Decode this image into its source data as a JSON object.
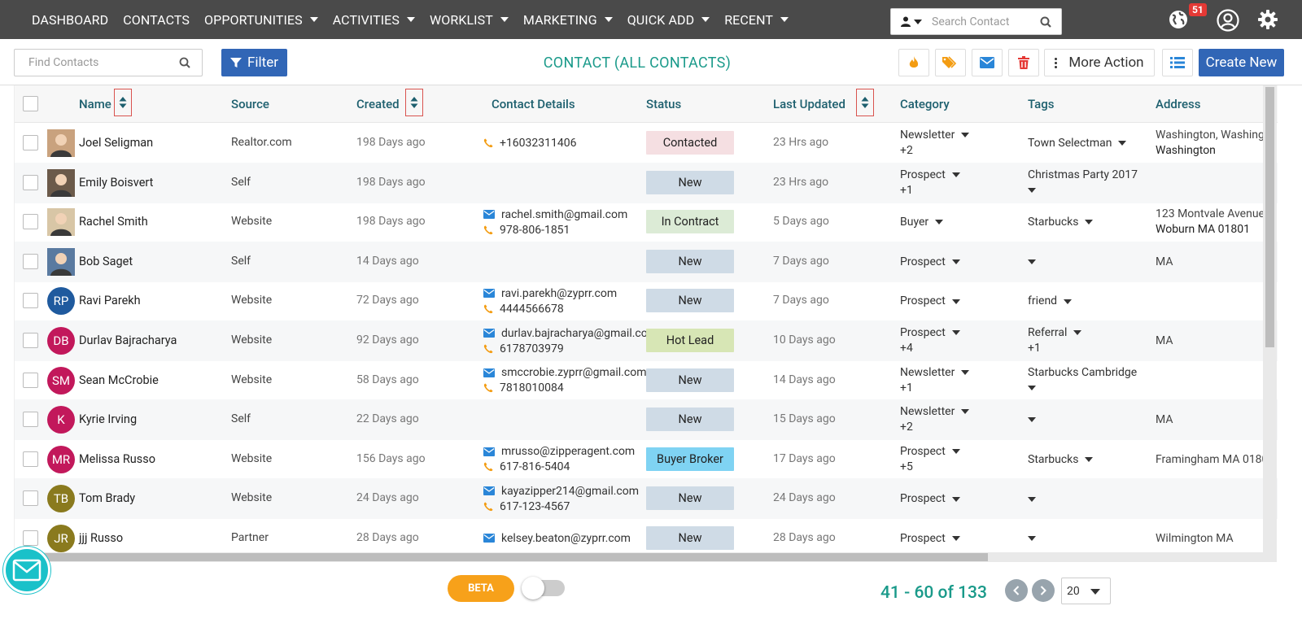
{
  "nav": {
    "items": [
      {
        "label": "DASHBOARD",
        "caret": false
      },
      {
        "label": "CONTACTS",
        "caret": false
      },
      {
        "label": "OPPORTUNITIES",
        "caret": true
      },
      {
        "label": "ACTIVITIES",
        "caret": true
      },
      {
        "label": "WORKLIST",
        "caret": true
      },
      {
        "label": "MARKETING",
        "caret": true
      },
      {
        "label": "QUICK ADD",
        "caret": true
      },
      {
        "label": "RECENT",
        "caret": true
      }
    ],
    "search_placeholder": "Search Contact",
    "notification_count": "51"
  },
  "toolbar": {
    "find_placeholder": "Find Contacts",
    "filter_label": "Filter",
    "title": "CONTACT (ALL CONTACTS)",
    "more_action_label": "More Action",
    "create_new_label": "Create New"
  },
  "table": {
    "columns": {
      "name": "Name",
      "source": "Source",
      "created": "Created",
      "contact_details": "Contact Details",
      "status": "Status",
      "last_updated": "Last Updated",
      "category": "Category",
      "tags": "Tags",
      "address": "Address"
    },
    "rows": [
      {
        "name": "Joel Seligman",
        "avatar": "photo",
        "avatar_color": "#c9a27e",
        "source": "Realtor.com",
        "created": "198 Days ago",
        "email": "",
        "phone": "+16032311406",
        "status": "Contacted",
        "status_color": "#f5dfe2",
        "updated": "23 Hrs ago",
        "category": "Newsletter",
        "category_extra": "+2",
        "tag": "Town Selectman",
        "tag_extra": "",
        "tag_caret_below": false,
        "address1": "Washington, Washingt",
        "address2": "Washington"
      },
      {
        "name": "Emily Boisvert",
        "avatar": "photo",
        "avatar_color": "#6b5a4a",
        "source": "Self",
        "created": "198 Days ago",
        "email": "",
        "phone": "",
        "status": "New",
        "status_color": "#cfdbe6",
        "updated": "23 Hrs ago",
        "category": "Prospect",
        "category_extra": "+1",
        "tag": "Christmas Party 2017",
        "tag_extra": "",
        "tag_caret_below": true,
        "address1": "",
        "address2": ""
      },
      {
        "name": "Rachel Smith",
        "avatar": "photo",
        "avatar_color": "#d8c6a6",
        "source": "Website",
        "created": "198 Days ago",
        "email": "rachel.smith@gmail.com",
        "phone": "978-806-1851",
        "status": "In Contract",
        "status_color": "#dcebd6",
        "updated": "5 Days ago",
        "category": "Buyer",
        "category_extra": "",
        "tag": "Starbucks",
        "tag_extra": "",
        "tag_caret_below": false,
        "address1": "123 Montvale Avenue",
        "address2": "Woburn MA 01801"
      },
      {
        "name": "Bob Saget",
        "avatar": "photo",
        "avatar_color": "#5a7aa0",
        "source": "Self",
        "created": "14 Days ago",
        "email": "",
        "phone": "",
        "status": "New",
        "status_color": "#cfdbe6",
        "updated": "7 Days ago",
        "category": "Prospect",
        "category_extra": "",
        "tag": "",
        "tag_extra": "",
        "tag_caret_below": false,
        "address1": "MA",
        "address2": ""
      },
      {
        "name": "Ravi Parekh",
        "avatar": "RP",
        "avatar_color": "#1f5a9e",
        "source": "Website",
        "created": "72 Days ago",
        "email": "ravi.parekh@zyprr.com",
        "phone": "4444566678",
        "status": "New",
        "status_color": "#cfdbe6",
        "updated": "7 Days ago",
        "category": "Prospect",
        "category_extra": "",
        "tag": "friend",
        "tag_extra": "",
        "tag_caret_below": false,
        "address1": "",
        "address2": ""
      },
      {
        "name": "Durlav Bajracharya",
        "avatar": "DB",
        "avatar_color": "#c2185b",
        "source": "Website",
        "created": "92 Days ago",
        "email": "durlav.bajracharya@gmail.com",
        "phone": "6178703979",
        "status": "Hot Lead",
        "status_color": "#d7e6b5",
        "updated": "10 Days ago",
        "category": "Prospect",
        "category_extra": "+4",
        "tag": "Referral",
        "tag_extra": "+1",
        "tag_caret_below": false,
        "address1": "MA",
        "address2": ""
      },
      {
        "name": "Sean McCrobie",
        "avatar": "SM",
        "avatar_color": "#c2185b",
        "source": "Website",
        "created": "58 Days ago",
        "email": "smccrobie.zyprr@gmail.com",
        "phone": "7818010084",
        "status": "New",
        "status_color": "#cfdbe6",
        "updated": "14 Days ago",
        "category": "Newsletter",
        "category_extra": "+1",
        "tag": "Starbucks Cambridge",
        "tag_extra": "",
        "tag_caret_below": true,
        "address1": "",
        "address2": ""
      },
      {
        "name": "Kyrie Irving",
        "avatar": "K",
        "avatar_color": "#c2185b",
        "source": "Self",
        "created": "22 Days ago",
        "email": "",
        "phone": "",
        "status": "New",
        "status_color": "#cfdbe6",
        "updated": "15 Days ago",
        "category": "Newsletter",
        "category_extra": "+2",
        "tag": "",
        "tag_extra": "",
        "tag_caret_below": false,
        "address1": "MA",
        "address2": ""
      },
      {
        "name": "Melissa Russo",
        "avatar": "MR",
        "avatar_color": "#c2185b",
        "source": "Website",
        "created": "156 Days ago",
        "email": "mrusso@zipperagent.com",
        "phone": "617-816-5404",
        "status": "Buyer Broker",
        "status_color": "#7fd3f3",
        "updated": "17 Days ago",
        "category": "Prospect",
        "category_extra": "+5",
        "tag": "Starbucks",
        "tag_extra": "",
        "tag_caret_below": false,
        "address1": "Framingham MA 0180",
        "address2": ""
      },
      {
        "name": "Tom Brady",
        "avatar": "TB",
        "avatar_color": "#8a7a1e",
        "source": "Website",
        "created": "24 Days ago",
        "email": "kayazipper214@gmail.com",
        "phone": "617-123-4567",
        "status": "New",
        "status_color": "#cfdbe6",
        "updated": "24 Days ago",
        "category": "Prospect",
        "category_extra": "",
        "tag": "",
        "tag_extra": "",
        "tag_caret_below": false,
        "address1": "",
        "address2": ""
      },
      {
        "name": "jjj Russo",
        "avatar": "JR",
        "avatar_color": "#8a7a1e",
        "source": "Partner",
        "created": "28 Days ago",
        "email": "kelsey.beaton@zyprr.com",
        "phone": "",
        "status": "New",
        "status_color": "#cfdbe6",
        "updated": "28 Days ago",
        "category": "Prospect",
        "category_extra": "",
        "tag": "",
        "tag_extra": "",
        "tag_caret_below": false,
        "address1": "Wilmington MA",
        "address2": ""
      }
    ]
  },
  "footer": {
    "beta_label": "BETA",
    "page_info": "41 - 60 of 133",
    "page_size": "20"
  },
  "colors": {
    "nav_bg": "#4a4a4a",
    "primary": "#3166b6",
    "accent": "#1a9a8a",
    "beta": "#f7a11a",
    "phone_icon": "#f39c12",
    "email_icon": "#2a86d8"
  }
}
